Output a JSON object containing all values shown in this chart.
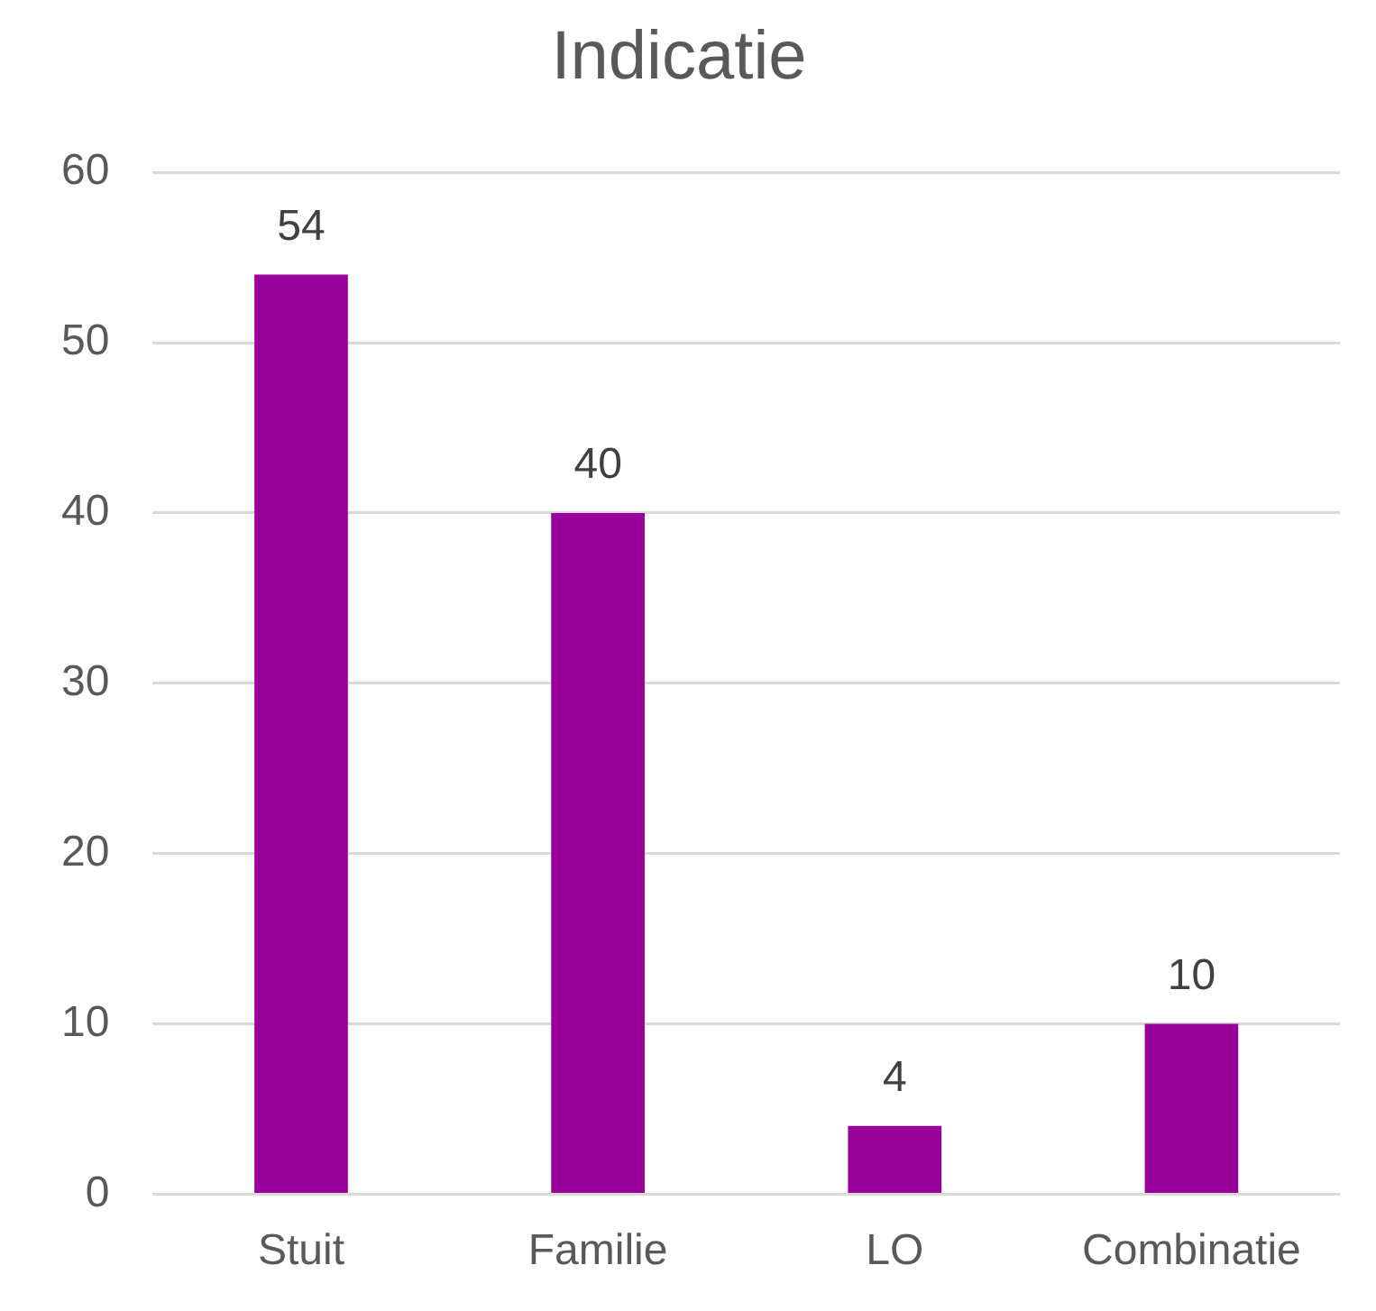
{
  "chart_data": {
    "type": "bar",
    "title": "Indicatie",
    "categories": [
      "Stuit",
      "Familie",
      "LO",
      "Combinatie"
    ],
    "values": [
      54,
      40,
      4,
      10
    ],
    "color": "#990099",
    "ylim": [
      0,
      60
    ],
    "yticks": [
      0,
      10,
      20,
      30,
      40,
      50,
      60
    ],
    "grid": "y",
    "data_labels": true
  }
}
